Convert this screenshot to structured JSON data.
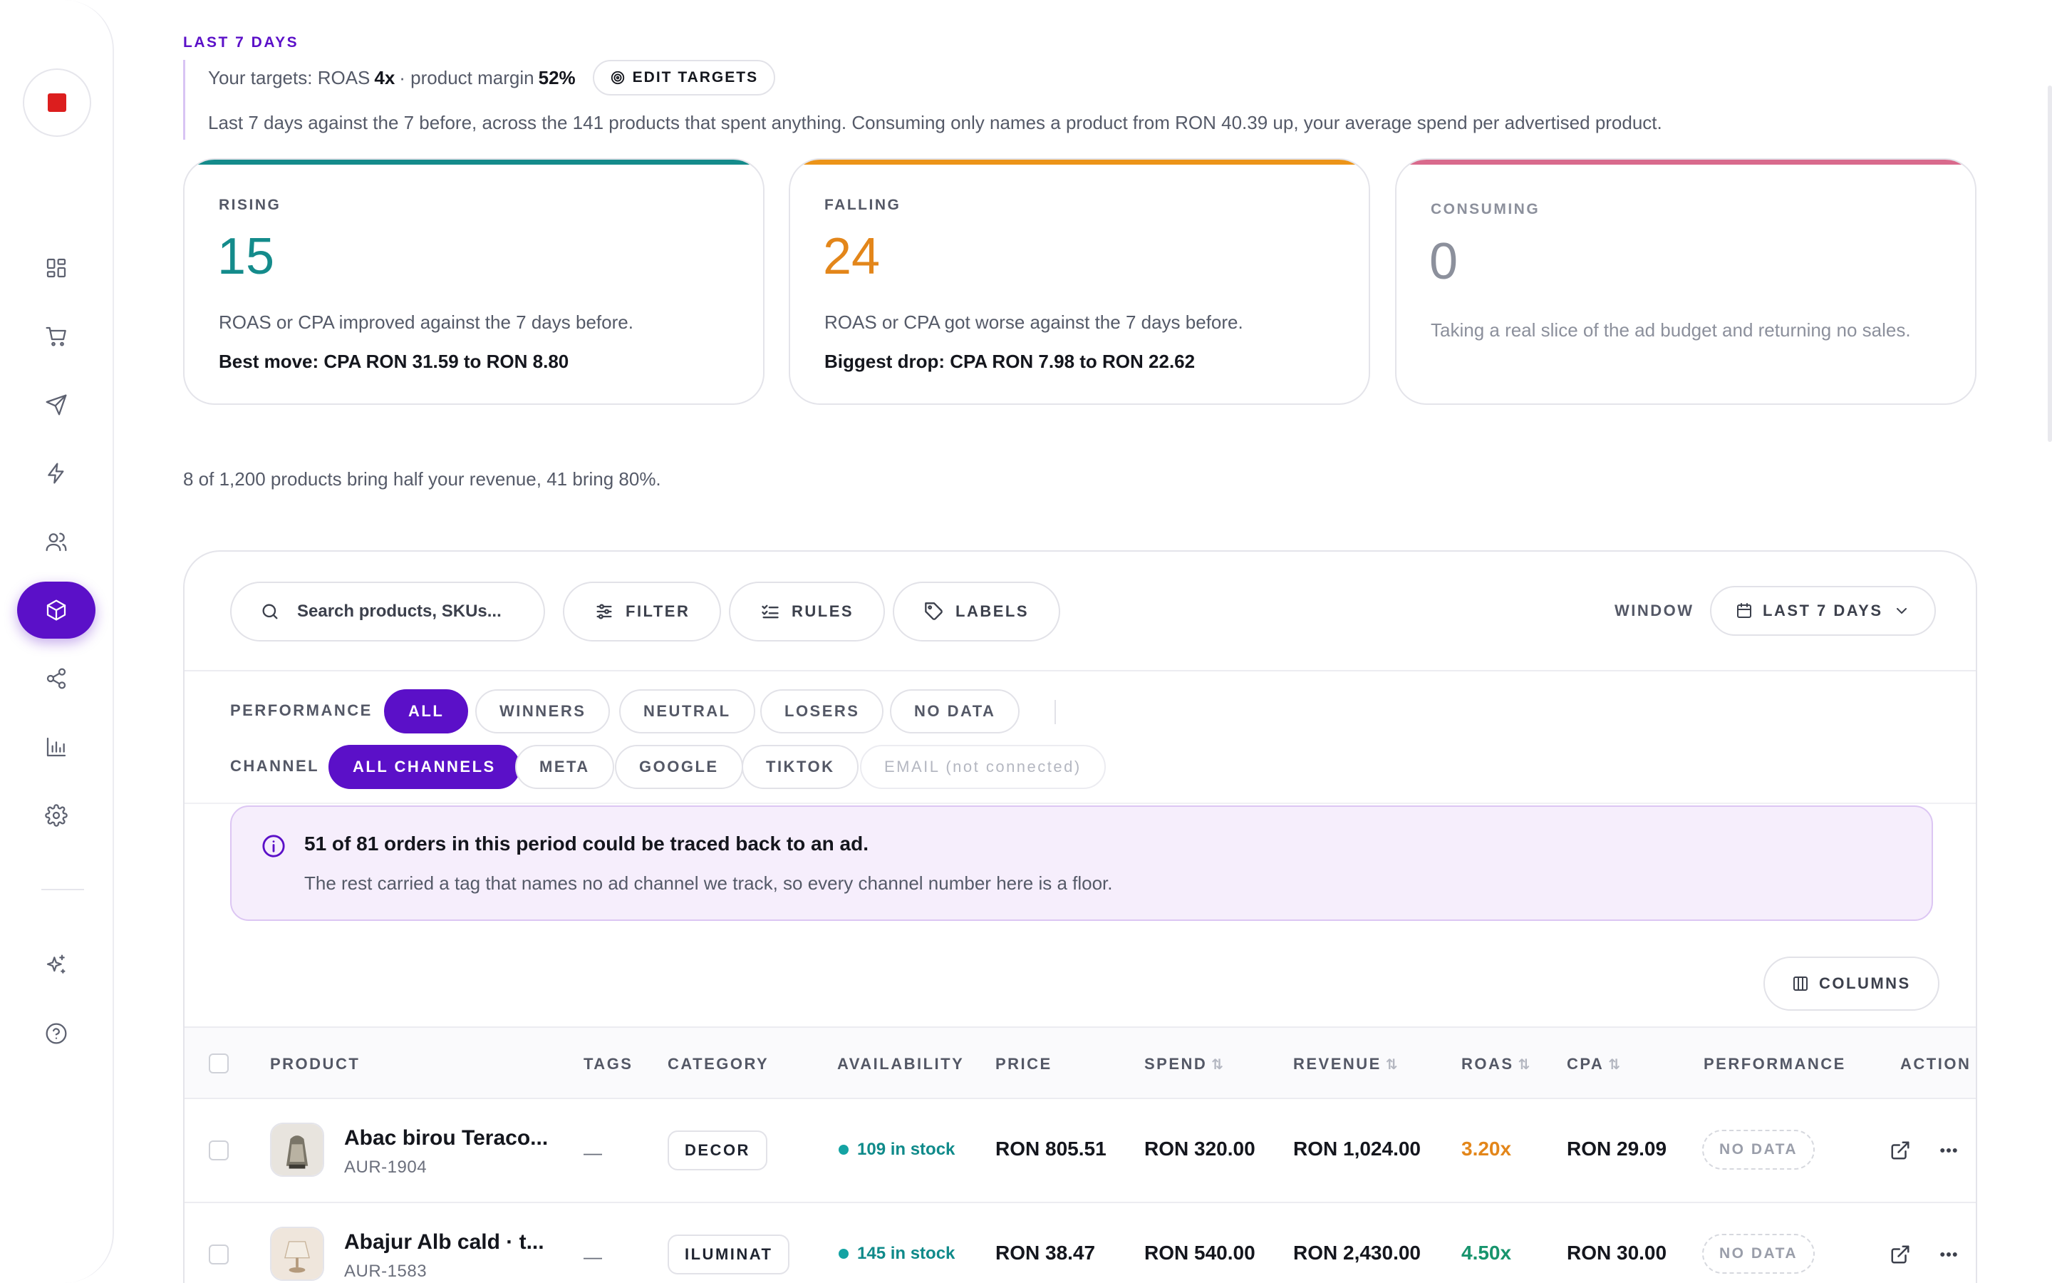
{
  "header": {
    "period_label": "LAST 7 DAYS",
    "targets_prefix": "Your targets: ROAS",
    "roas_target": "4x",
    "margin_prefix": "· product margin",
    "margin_target": "52%",
    "edit_targets_label": "EDIT TARGETS",
    "description": "Last 7 days against the 7 before, across the 141 products that spent anything. Consuming only names a product from RON 40.39 up, your average spend per advertised product."
  },
  "cards": {
    "rising": {
      "label": "RISING",
      "value": "15",
      "description": "ROAS or CPA improved against the 7 days before.",
      "highlight": "Best move: CPA RON 31.59 to RON 8.80"
    },
    "falling": {
      "label": "FALLING",
      "value": "24",
      "description": "ROAS or CPA got worse against the 7 days before.",
      "highlight": "Biggest drop: CPA RON 7.98 to RON 22.62"
    },
    "consuming": {
      "label": "CONSUMING",
      "value": "0",
      "description": "Taking a real slice of the ad budget and returning no sales."
    }
  },
  "pareto_text": "8 of 1,200 products bring half your revenue, 41 bring 80%.",
  "toolbar": {
    "search_placeholder": "Search products, SKUs...",
    "filter_label": "FILTER",
    "rules_label": "RULES",
    "labels_label": "LABELS",
    "window_label": "WINDOW",
    "window_value": "LAST 7 DAYS"
  },
  "filters": {
    "performance_label": "PERFORMANCE",
    "performance_options": [
      "ALL",
      "WINNERS",
      "NEUTRAL",
      "LOSERS",
      "NO DATA"
    ],
    "performance_selected": "ALL",
    "channel_label": "CHANNEL",
    "channel_options": [
      "ALL CHANNELS",
      "META",
      "GOOGLE",
      "TIKTOK",
      "EMAIL (not connected)"
    ],
    "channel_selected": "ALL CHANNELS"
  },
  "notice": {
    "title": "51 of 81 orders in this period could be traced back to an ad.",
    "body": "The rest carried a tag that names no ad channel we track, so every channel number here is a floor."
  },
  "columns_button": "COLUMNS",
  "table": {
    "headers": [
      "PRODUCT",
      "TAGS",
      "CATEGORY",
      "AVAILABILITY",
      "PRICE",
      "SPEND",
      "REVENUE",
      "ROAS",
      "CPA",
      "PERFORMANCE",
      "ACTION"
    ],
    "sort_glyph": "⇅",
    "rows": [
      {
        "name": "Abac birou Teraco...",
        "sku": "AUR-1904",
        "tags": "—",
        "category": "DECOR",
        "availability": "109 in stock",
        "price": "RON 805.51",
        "spend": "RON 320.00",
        "revenue": "RON 1,024.00",
        "roas": "3.20x",
        "cpa": "RON 29.09",
        "performance": "NO DATA"
      },
      {
        "name": "Abajur Alb cald · t...",
        "sku": "AUR-1583",
        "tags": "—",
        "category": "ILUMINAT",
        "availability": "145 in stock",
        "price": "RON 38.47",
        "spend": "RON 540.00",
        "revenue": "RON 2,430.00",
        "roas": "4.50x",
        "cpa": "RON 30.00",
        "performance": "NO DATA"
      }
    ]
  },
  "colors": {
    "accent": "#5b10c8",
    "rising": "#148b8b",
    "falling": "#e3861a",
    "consuming": "#d96a8c",
    "brand_mark": "#dc1e1e"
  },
  "icons": {
    "sidebar": [
      "grid-icon",
      "cart-icon",
      "send-icon",
      "bolt-icon",
      "users-icon",
      "box-icon",
      "share-icon",
      "bar-chart-icon",
      "gear-icon",
      "sparkles-icon",
      "help-icon"
    ]
  }
}
